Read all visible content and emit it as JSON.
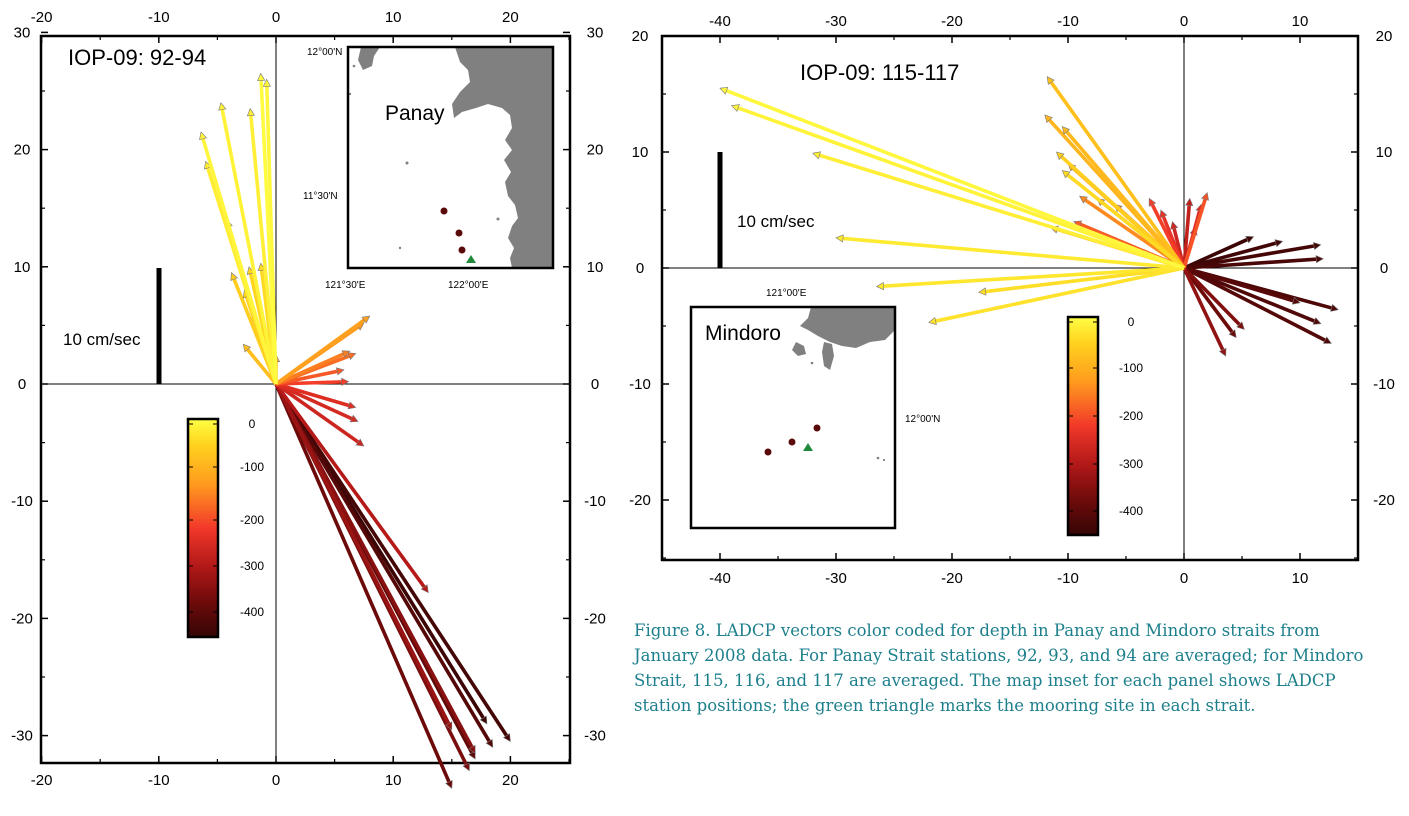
{
  "chart_data": [
    {
      "type": "vector",
      "title": "IOP-09: 92-94",
      "xlim": [
        -20,
        25
      ],
      "ylim": [
        -35,
        30
      ],
      "xticks": [
        -20,
        -10,
        0,
        10,
        20
      ],
      "yticks": [
        -30,
        -20,
        -10,
        0,
        10,
        20,
        30
      ],
      "grid": false,
      "scale_bar": {
        "label": "10 cm/sec",
        "length": 10
      },
      "colorbar": {
        "ticks": [
          0,
          -100,
          -200,
          -300,
          -400
        ],
        "range": [
          0,
          -450
        ],
        "colors": [
          "#ffff44",
          "#ffd21e",
          "#ff9a1e",
          "#f2382a",
          "#b01818",
          "#6a0a0a",
          "#350505"
        ]
      },
      "inset": {
        "name": "Panay",
        "lat_labels": [
          "12°00'N",
          "11°30'N"
        ],
        "lon_labels": [
          "121°30'E",
          "122°00'E"
        ],
        "stations": [
          {
            "lon": 121.88,
            "lat": 11.45
          },
          {
            "lon": 121.93,
            "lat": 11.38
          },
          {
            "lon": 121.94,
            "lat": 11.34
          }
        ],
        "mooring": {
          "lon": 121.97,
          "lat": 11.3
        }
      },
      "vectors": [
        {
          "u": -1.3,
          "v": 26.5,
          "depth": -5
        },
        {
          "u": -0.8,
          "v": 26.0,
          "depth": -10
        },
        {
          "u": -2.2,
          "v": 23.5,
          "depth": -18
        },
        {
          "u": -4.7,
          "v": 24.0,
          "depth": -15
        },
        {
          "u": -6.4,
          "v": 21.5,
          "depth": -12
        },
        {
          "u": -6.0,
          "v": 19.0,
          "depth": -22
        },
        {
          "u": -4.2,
          "v": 14.0,
          "depth": -30
        },
        {
          "u": -1.3,
          "v": 10.3,
          "depth": -45
        },
        {
          "u": -2.3,
          "v": 10.0,
          "depth": -50
        },
        {
          "u": -3.8,
          "v": 9.5,
          "depth": -60
        },
        {
          "u": -2.7,
          "v": 8.0,
          "depth": -55
        },
        {
          "u": -2.0,
          "v": 6.0,
          "depth": -70
        },
        {
          "u": -2.8,
          "v": 3.4,
          "depth": -85
        },
        {
          "u": 0.0,
          "v": 2.5,
          "depth": -95
        },
        {
          "u": 8.0,
          "v": 5.8,
          "depth": -125
        },
        {
          "u": 7.5,
          "v": 5.2,
          "depth": -135
        },
        {
          "u": 6.3,
          "v": 2.8,
          "depth": -160
        },
        {
          "u": 6.8,
          "v": 2.6,
          "depth": -175
        },
        {
          "u": 5.8,
          "v": 1.2,
          "depth": -195
        },
        {
          "u": 6.2,
          "v": 0.2,
          "depth": -220
        },
        {
          "u": 6.8,
          "v": -2.0,
          "depth": -250
        },
        {
          "u": 7.0,
          "v": -3.2,
          "depth": -260
        },
        {
          "u": 7.5,
          "v": -5.3,
          "depth": -270
        },
        {
          "u": 13.0,
          "v": -17.8,
          "depth": -300
        },
        {
          "u": 15.0,
          "v": -29.5,
          "depth": -330
        },
        {
          "u": 17.0,
          "v": -31.5,
          "depth": -350
        },
        {
          "u": 16.5,
          "v": -33.0,
          "depth": -365
        },
        {
          "u": 15.0,
          "v": -34.5,
          "depth": -380
        },
        {
          "u": 17.0,
          "v": -32.0,
          "depth": -395
        },
        {
          "u": 18.5,
          "v": -31.0,
          "depth": -410
        },
        {
          "u": 20.0,
          "v": -30.5,
          "depth": -430
        },
        {
          "u": 18.0,
          "v": -29.0,
          "depth": -440
        }
      ]
    },
    {
      "type": "vector",
      "title": "IOP-09: 115-117",
      "xlim": [
        -45,
        15
      ],
      "ylim": [
        -25,
        20
      ],
      "xticks": [
        -40,
        -30,
        -20,
        -10,
        0,
        10
      ],
      "yticks": [
        -20,
        -10,
        0,
        10,
        20
      ],
      "grid": false,
      "scale_bar": {
        "label": "10 cm/sec",
        "length": 10
      },
      "colorbar": {
        "ticks": [
          0,
          -100,
          -200,
          -300,
          -400
        ],
        "range": [
          0,
          -450
        ],
        "colors": [
          "#ffff44",
          "#ffd21e",
          "#ff9a1e",
          "#f2382a",
          "#b01818",
          "#6a0a0a",
          "#350505"
        ]
      },
      "inset": {
        "name": "Mindoro",
        "lat_labels": [
          "12°00'N"
        ],
        "lon_labels": [
          "121°00'E"
        ],
        "stations": [
          {
            "lon": 120.93,
            "lat": 11.82
          },
          {
            "lon": 120.98,
            "lat": 11.84
          },
          {
            "lon": 121.02,
            "lat": 11.88
          }
        ],
        "mooring": {
          "lon": 121.01,
          "lat": 11.83
        }
      },
      "vectors": [
        {
          "u": -40.0,
          "v": 15.5,
          "depth": -10
        },
        {
          "u": -39.0,
          "v": 14.0,
          "depth": -15
        },
        {
          "u": -32.0,
          "v": 9.9,
          "depth": -20
        },
        {
          "u": -30.0,
          "v": 2.6,
          "depth": -25
        },
        {
          "u": -26.5,
          "v": -1.6,
          "depth": -30
        },
        {
          "u": -22.0,
          "v": -4.7,
          "depth": -35
        },
        {
          "u": -17.7,
          "v": -2.1,
          "depth": -40
        },
        {
          "u": -11.8,
          "v": 16.5,
          "depth": -80
        },
        {
          "u": -12.0,
          "v": 13.2,
          "depth": -95
        },
        {
          "u": -10.5,
          "v": 12.2,
          "depth": -90
        },
        {
          "u": -11.0,
          "v": 10.0,
          "depth": -60
        },
        {
          "u": -10.0,
          "v": 9.0,
          "depth": -105
        },
        {
          "u": -10.5,
          "v": 8.4,
          "depth": -45
        },
        {
          "u": -7.5,
          "v": 6.0,
          "depth": -130
        },
        {
          "u": -9.0,
          "v": 6.2,
          "depth": -150
        },
        {
          "u": -6.0,
          "v": 5.5,
          "depth": -160
        },
        {
          "u": -9.5,
          "v": 4.0,
          "depth": -190
        },
        {
          "u": -11.5,
          "v": 3.5,
          "depth": -70
        },
        {
          "u": -3.0,
          "v": 6.0,
          "depth": -220
        },
        {
          "u": -2.0,
          "v": 5.0,
          "depth": -240
        },
        {
          "u": -1.0,
          "v": 4.0,
          "depth": -270
        },
        {
          "u": 0.5,
          "v": 6.0,
          "depth": -285
        },
        {
          "u": 1.5,
          "v": 5.5,
          "depth": -255
        },
        {
          "u": 2.0,
          "v": 6.5,
          "depth": -200
        },
        {
          "u": 1.0,
          "v": 3.5,
          "depth": -300
        },
        {
          "u": 6.0,
          "v": 2.7,
          "depth": -440
        },
        {
          "u": 8.5,
          "v": 2.3,
          "depth": -435
        },
        {
          "u": 11.8,
          "v": 2.0,
          "depth": -430
        },
        {
          "u": 12.0,
          "v": 0.8,
          "depth": -425
        },
        {
          "u": 13.3,
          "v": -3.6,
          "depth": -420
        },
        {
          "u": 11.8,
          "v": -4.8,
          "depth": -415
        },
        {
          "u": 12.7,
          "v": -6.5,
          "depth": -410
        },
        {
          "u": 10.0,
          "v": -3.0,
          "depth": -405
        },
        {
          "u": 5.2,
          "v": -5.3,
          "depth": -360
        },
        {
          "u": 3.6,
          "v": -7.6,
          "depth": -340
        },
        {
          "u": 4.5,
          "v": -6.0,
          "depth": -380
        }
      ]
    }
  ],
  "caption": "Figure 8. LADCP vectors color coded for depth in Panay and Mindoro straits from January 2008 data. For Panay Strait stations, 92, 93, and 94 are averaged; for Mindoro Strait, 115, 116, and 117 are averaged. The map inset for each panel shows LADCP station positions; the green triangle marks the mooring site in each strait."
}
